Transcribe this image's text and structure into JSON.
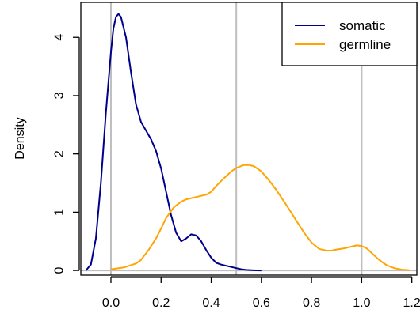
{
  "chart_data": {
    "type": "line",
    "title": "",
    "xlabel": "",
    "ylabel": "Density",
    "xlim": [
      -0.12,
      1.22
    ],
    "ylim": [
      -0.08,
      4.6
    ],
    "x_ticks": [
      "0.0",
      "0.2",
      "0.4",
      "0.6",
      "0.8",
      "1.0",
      "1.2"
    ],
    "x_tick_values": [
      0.0,
      0.2,
      0.4,
      0.6,
      0.8,
      1.0,
      1.2
    ],
    "y_ticks": [
      "0",
      "1",
      "2",
      "3",
      "4"
    ],
    "y_tick_values": [
      0,
      1,
      2,
      3,
      4
    ],
    "reference_lines_x": [
      0.0,
      0.5,
      1.0
    ],
    "reference_line_color": "#bebebe",
    "legend_position": "top-right",
    "series": [
      {
        "name": "somatic",
        "color": "#00008b",
        "x": [
          -0.1,
          -0.08,
          -0.06,
          -0.04,
          -0.02,
          0.0,
          0.01,
          0.02,
          0.03,
          0.04,
          0.06,
          0.08,
          0.1,
          0.12,
          0.14,
          0.16,
          0.18,
          0.2,
          0.22,
          0.24,
          0.26,
          0.28,
          0.3,
          0.32,
          0.34,
          0.36,
          0.38,
          0.4,
          0.42,
          0.44,
          0.46,
          0.48,
          0.5,
          0.52,
          0.54,
          0.56,
          0.58,
          0.6
        ],
        "y": [
          0.0,
          0.1,
          0.55,
          1.5,
          2.7,
          3.75,
          4.15,
          4.35,
          4.4,
          4.35,
          4.0,
          3.4,
          2.85,
          2.55,
          2.4,
          2.25,
          2.05,
          1.75,
          1.35,
          0.95,
          0.65,
          0.5,
          0.55,
          0.62,
          0.6,
          0.5,
          0.35,
          0.22,
          0.13,
          0.1,
          0.08,
          0.06,
          0.04,
          0.02,
          0.01,
          0.005,
          0.002,
          0.0
        ]
      },
      {
        "name": "germline",
        "color": "#ffa500",
        "x": [
          0.0,
          0.05,
          0.1,
          0.12,
          0.15,
          0.18,
          0.2,
          0.22,
          0.25,
          0.28,
          0.3,
          0.33,
          0.36,
          0.38,
          0.4,
          0.42,
          0.45,
          0.48,
          0.5,
          0.53,
          0.55,
          0.57,
          0.6,
          0.63,
          0.66,
          0.7,
          0.74,
          0.77,
          0.8,
          0.83,
          0.86,
          0.88,
          0.9,
          0.93,
          0.96,
          0.98,
          1.0,
          1.02,
          1.04,
          1.07,
          1.1,
          1.13,
          1.16,
          1.19
        ],
        "y": [
          0.02,
          0.05,
          0.12,
          0.18,
          0.35,
          0.55,
          0.72,
          0.9,
          1.08,
          1.18,
          1.22,
          1.25,
          1.28,
          1.3,
          1.35,
          1.45,
          1.58,
          1.7,
          1.76,
          1.81,
          1.81,
          1.79,
          1.7,
          1.55,
          1.38,
          1.12,
          0.85,
          0.65,
          0.48,
          0.37,
          0.34,
          0.34,
          0.36,
          0.38,
          0.41,
          0.43,
          0.42,
          0.38,
          0.3,
          0.18,
          0.09,
          0.04,
          0.015,
          0.005
        ]
      }
    ]
  }
}
